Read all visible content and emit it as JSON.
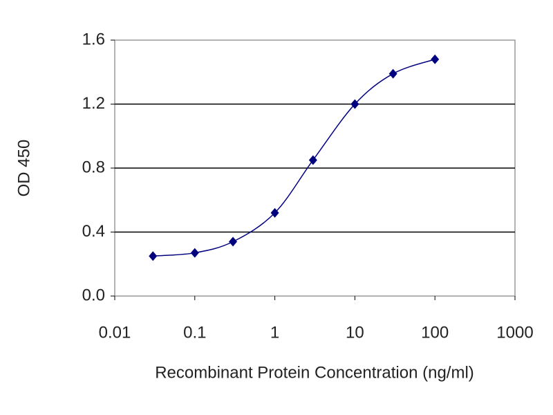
{
  "chart_data": {
    "type": "line",
    "xscale": "log",
    "x": [
      0.03,
      0.1,
      0.3,
      1,
      3,
      10,
      30,
      100
    ],
    "values": [
      0.25,
      0.27,
      0.34,
      0.52,
      0.85,
      1.2,
      1.39,
      1.48
    ],
    "color": "#00007f",
    "xlim": [
      0.01,
      1000
    ],
    "xticks": [
      0.01,
      0.1,
      1,
      10,
      100,
      1000
    ],
    "ylim": [
      0,
      1.6
    ],
    "yticks": [
      {
        "value": 0,
        "label": "0.0"
      },
      0.4,
      0.8,
      1.2,
      1.6
    ],
    "grid": true,
    "xlabel": "Recombinant Protein Concentration (ng/ml)",
    "ylabel": "OD 450"
  }
}
